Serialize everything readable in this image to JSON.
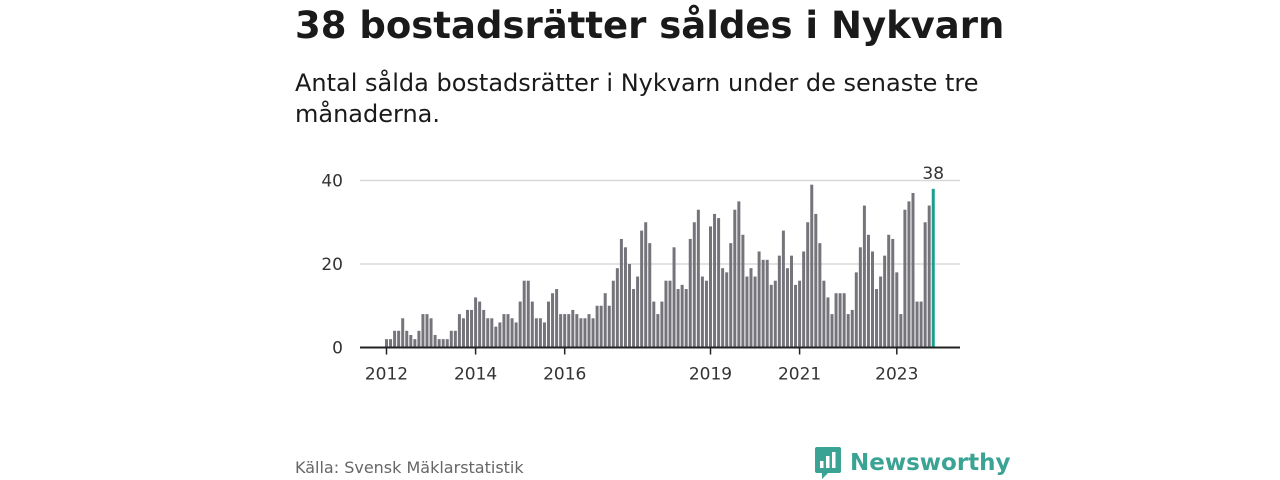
{
  "header": {
    "title": "38 bostadsrätter såldes i Nykvarn",
    "subtitle": "Antal sålda bostadsrätter i Nykvarn under de senaste tre månaderna."
  },
  "footer": {
    "source": "Källa: Svensk Mäklarstatistik",
    "brand": "Newsworthy"
  },
  "colors": {
    "bar": "#76747b",
    "highlight": "#1a9e8f",
    "brand": "#3aa394",
    "grid": "#d8d8d8",
    "axis": "#222222"
  },
  "chart_data": {
    "type": "bar",
    "title": "38 bostadsrätter såldes i Nykvarn",
    "xlabel": "",
    "ylabel": "",
    "ylim": [
      0,
      40
    ],
    "yticks": [
      "0",
      "20",
      "40"
    ],
    "xticks": [
      {
        "label": "2012",
        "index": 0
      },
      {
        "label": "2014",
        "index": 22
      },
      {
        "label": "2016",
        "index": 44
      },
      {
        "label": "2019",
        "index": 80
      },
      {
        "label": "2021",
        "index": 102
      },
      {
        "label": "2023",
        "index": 126
      }
    ],
    "series": [
      {
        "name": "Antal sålda bostadsrätter",
        "values": [
          2,
          2,
          4,
          4,
          7,
          4,
          3,
          2,
          4,
          8,
          8,
          7,
          3,
          2,
          2,
          2,
          4,
          4,
          8,
          7,
          9,
          9,
          12,
          11,
          9,
          7,
          7,
          5,
          6,
          8,
          8,
          7,
          6,
          11,
          16,
          16,
          11,
          7,
          7,
          6,
          11,
          13,
          14,
          8,
          8,
          8,
          9,
          8,
          7,
          7,
          8,
          7,
          10,
          10,
          13,
          10,
          16,
          19,
          26,
          24,
          20,
          14,
          17,
          28,
          30,
          25,
          11,
          8,
          11,
          16,
          16,
          24,
          14,
          15,
          14,
          26,
          30,
          33,
          17,
          16,
          29,
          32,
          31,
          19,
          18,
          25,
          33,
          35,
          27,
          17,
          19,
          17,
          23,
          21,
          21,
          15,
          16,
          22,
          28,
          19,
          22,
          15,
          16,
          23,
          30,
          39,
          32,
          25,
          16,
          12,
          8,
          13,
          13,
          13,
          8,
          9,
          18,
          24,
          34,
          27,
          23,
          14,
          17,
          22,
          27,
          26,
          18,
          8,
          33,
          35,
          37,
          11,
          11,
          30,
          34,
          38
        ]
      }
    ],
    "highlight": {
      "index": 135,
      "value": 38,
      "label": "38"
    }
  }
}
